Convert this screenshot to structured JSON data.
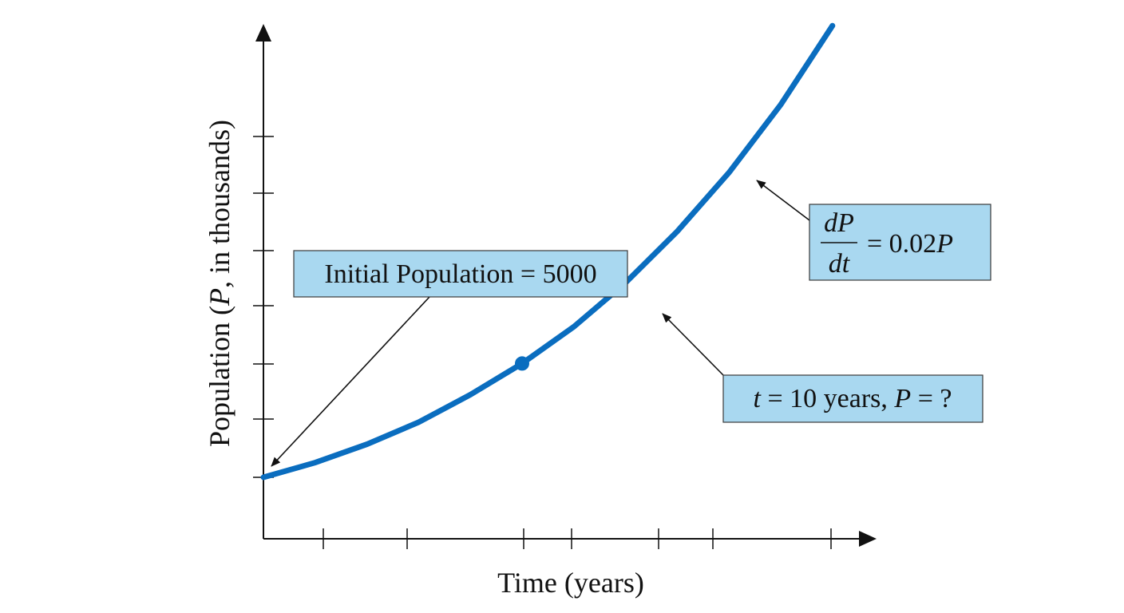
{
  "chart_data": {
    "type": "line",
    "xlabel": "Time (years)",
    "ylabel_parts": {
      "before": "Population (",
      "var": "P",
      "after": ", in thousands)"
    },
    "growth_rate": 0.02,
    "initial_population": 5000,
    "series": [
      {
        "x": [
          0,
          2,
          4,
          6,
          8,
          10,
          12,
          14,
          16,
          18,
          20,
          22
        ],
        "y": [
          0.0,
          0.08,
          0.18,
          0.3,
          0.45,
          0.62,
          0.82,
          1.06,
          1.34,
          1.66,
          2.03,
          2.46
        ]
      }
    ],
    "marked_point": {
      "x": 10,
      "y": 0.62
    },
    "x_ticks_count": 7,
    "y_ticks_count": 7,
    "grid": false,
    "colors": {
      "curve": "#0a6dbf",
      "box_fill": "#a9d8f0",
      "axis": "#111111"
    },
    "annotations": {
      "initial": {
        "text": "Initial Population = 5000"
      },
      "rate": {
        "numerator": "dP",
        "denominator": "dt",
        "rhs_eq": "= 0.02",
        "rhs_var": "P"
      },
      "query": {
        "t_var": "t",
        "middle": " = 10 years, ",
        "p_var": "P",
        "end": " = ?"
      }
    }
  }
}
